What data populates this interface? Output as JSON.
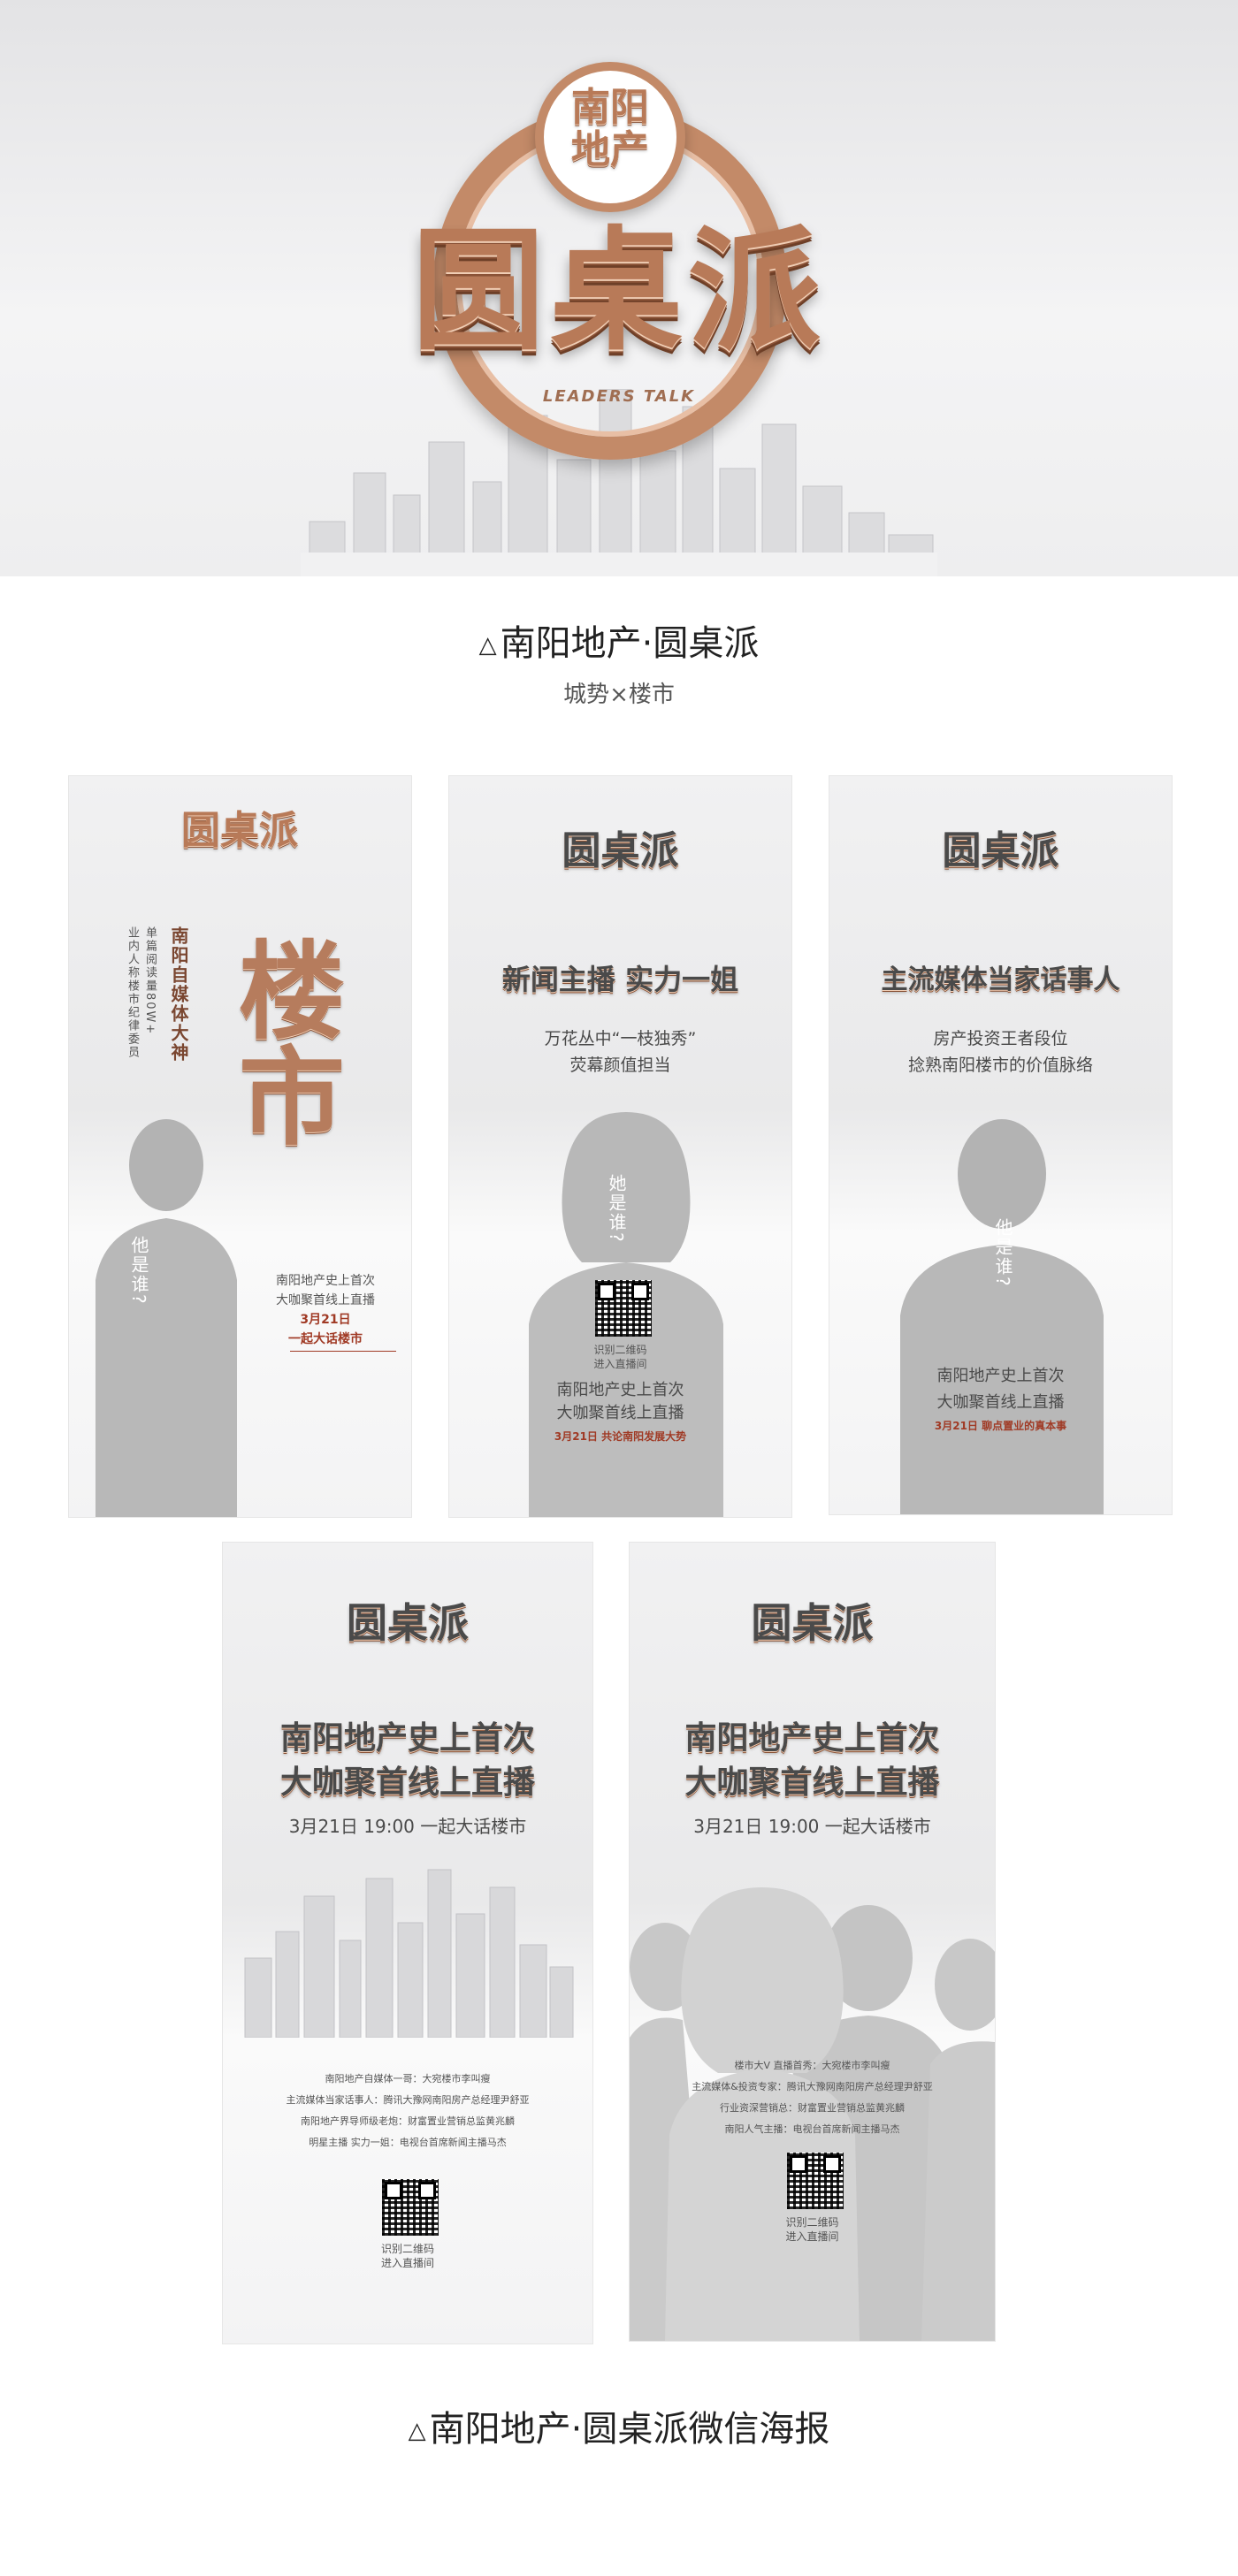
{
  "hero": {
    "logo_top": "南阳",
    "logo_bottom": "地产",
    "logo_main": "圆桌派",
    "logo_en": "LEADERS TALK",
    "caption": "南阳地产·圆桌派",
    "subcaption": "城势×楼市"
  },
  "colors": {
    "copper": "#b87a58",
    "red": "#a03a25",
    "silhouette": "#9a9a9a"
  },
  "posters": {
    "p1": {
      "big_chars": "楼市",
      "vertical_title": "南阳自媒体大神",
      "vertical_sub1": "单篇阅读量80W+",
      "vertical_sub2": "业内人称楼市纪律委员",
      "who": "他是谁?",
      "line1": "南阳地产史上首次",
      "line2": "大咖聚首线上直播",
      "date": "3月21日",
      "slogan": "一起大话楼市"
    },
    "p2": {
      "headline": "新闻主播 实力一姐",
      "line1": "万花丛中“一枝独秀”",
      "line2": "荧幕颜值担当",
      "who": "她是谁?",
      "qr_text1": "识别二维码",
      "qr_text2": "进入直播间",
      "line3": "南阳地产史上首次",
      "line4": "大咖聚首线上直播",
      "date": "3月21日 共论南阳发展大势"
    },
    "p3": {
      "headline": "主流媒体当家话事人",
      "line1": "房产投资王者段位",
      "line2": "捻熟南阳楼市的价值脉络",
      "who": "他是谁?",
      "line3": "南阳地产史上首次",
      "line4": "大咖聚首线上直播",
      "date": "3月21日 聊点置业的真本事"
    },
    "p4": {
      "headline1": "南阳地产史上首次",
      "headline2": "大咖聚首线上直播",
      "datetime": "3月21日 19:00 一起大话楼市",
      "guests": [
        "南阳地产自媒体一哥：大宛楼市李叫瘦",
        "主流媒体当家话事人：腾讯大豫网南阳房产总经理尹舒亚",
        "南阳地产界导师级老炮：财富置业营销总监黄兆麟",
        "明星主播 实力一姐：电视台首席新闻主播马杰"
      ],
      "qr_text1": "识别二维码",
      "qr_text2": "进入直播间"
    },
    "p5": {
      "headline1": "南阳地产史上首次",
      "headline2": "大咖聚首线上直播",
      "datetime": "3月21日 19:00 一起大话楼市",
      "guests": [
        "楼市大V 直播首秀：大宛楼市李叫瘦",
        "主流媒体&投资专家：腾讯大豫网南阳房产总经理尹舒亚",
        "行业资深营销总：财富置业营销总监黄兆麟",
        "南阳人气主播：电视台首席新闻主播马杰"
      ],
      "qr_text1": "识别二维码",
      "qr_text2": "进入直播间"
    }
  },
  "bottom_caption": "南阳地产·圆桌派微信海报"
}
